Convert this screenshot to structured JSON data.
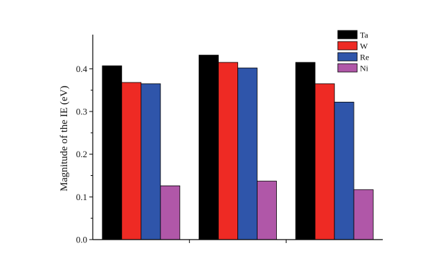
{
  "chart_data": {
    "type": "bar",
    "title": "",
    "xlabel": "",
    "ylabel": "Magnitude of the IE (eV)",
    "ylim": [
      0.0,
      0.48
    ],
    "yticks": [
      "0.0",
      "0.1",
      "0.2",
      "0.3",
      "0.4"
    ],
    "categories": [
      "",
      "",
      ""
    ],
    "grid": false,
    "legend_position": "top-right",
    "series": [
      {
        "name": "Ta",
        "color": "#000000",
        "values": [
          0.407,
          0.432,
          0.415
        ]
      },
      {
        "name": "W",
        "color": "#ee2a24",
        "values": [
          0.368,
          0.415,
          0.365
        ]
      },
      {
        "name": "Re",
        "color": "#2f55aa",
        "values": [
          0.365,
          0.402,
          0.322
        ]
      },
      {
        "name": "Ni",
        "color": "#b057a8",
        "values": [
          0.126,
          0.137,
          0.117
        ]
      }
    ]
  }
}
